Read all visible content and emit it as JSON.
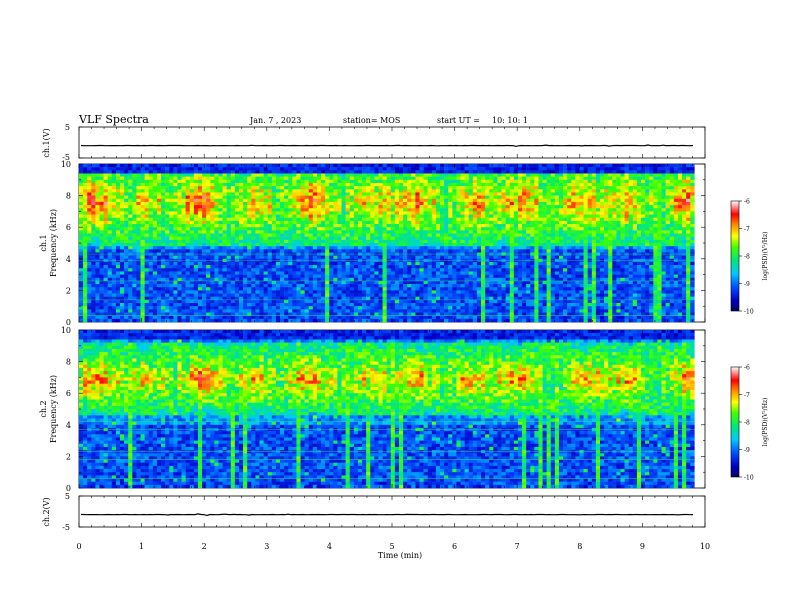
{
  "header": {
    "title": "VLF Spectra",
    "date": "Jan. 7 , 2023",
    "station": "station= MOS",
    "start_label": "start UT =",
    "start_time": "10: 10: 1"
  },
  "chart_data": [
    {
      "type": "line",
      "name": "ch1-waveform",
      "ylabel": "ch.1(V)",
      "ylim": [
        -5,
        5
      ],
      "yticks": [
        "5",
        "-5"
      ],
      "xlim": [
        0,
        10
      ],
      "level": -1
    },
    {
      "type": "heatmap",
      "name": "ch1-spectrogram",
      "ylabel_line1": "ch.1",
      "ylabel_line2": "Frequency (kHz)",
      "ylim": [
        0,
        10
      ],
      "yticks": [
        "0",
        "2",
        "4",
        "6",
        "8",
        "10"
      ],
      "xlim": [
        0,
        9.83
      ],
      "colorbar": {
        "label": "log(PSD)(V²/Hz)",
        "range": [
          -10,
          -6
        ],
        "ticks": [
          "-6",
          "-7",
          "-8",
          "-9",
          "-10"
        ]
      }
    },
    {
      "type": "heatmap",
      "name": "ch2-spectrogram",
      "ylabel_line1": "ch.2",
      "ylabel_line2": "Frequency (kHz)",
      "ylim": [
        0,
        10
      ],
      "yticks": [
        "0",
        "2",
        "4",
        "6",
        "8",
        "10"
      ],
      "xlim": [
        0,
        9.83
      ],
      "colorbar": {
        "label": "log(PSD)(V²/Hz)",
        "range": [
          -10,
          -6
        ],
        "ticks": [
          "-6",
          "-7",
          "-8",
          "-9",
          "-10"
        ]
      }
    },
    {
      "type": "line",
      "name": "ch2-waveform",
      "ylabel": "ch.2(V)",
      "ylim": [
        -5,
        5
      ],
      "yticks": [
        "5",
        "-5"
      ],
      "xlim": [
        0,
        10
      ],
      "level": -1,
      "xlabel": "Time (min)",
      "xticks": [
        "0",
        "1",
        "2",
        "3",
        "4",
        "5",
        "6",
        "7",
        "8",
        "9",
        "10"
      ]
    }
  ]
}
